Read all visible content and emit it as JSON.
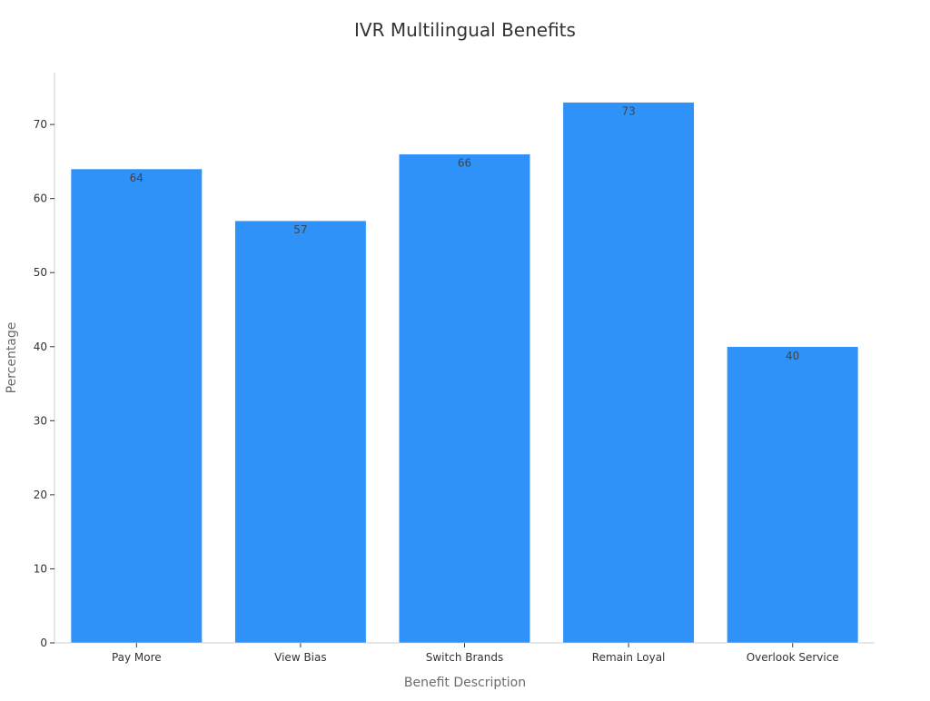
{
  "chart_data": {
    "type": "bar",
    "title": "IVR Multilingual Benefits",
    "xlabel": "Benefit Description",
    "ylabel": "Percentage",
    "categories": [
      "Pay More",
      "View Bias",
      "Switch Brands",
      "Remain Loyal",
      "Overlook Service"
    ],
    "values": [
      64,
      57,
      66,
      73,
      40
    ],
    "ylim": [
      0,
      77
    ],
    "yticks": [
      0,
      10,
      20,
      30,
      40,
      50,
      60,
      70
    ],
    "grid": false,
    "legend": "none",
    "bar_color": "#2f92f8",
    "data_labels": true
  }
}
